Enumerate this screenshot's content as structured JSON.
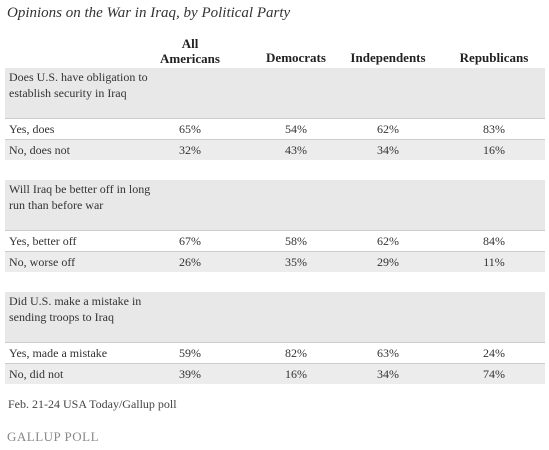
{
  "header": {
    "title": "Opinions on the War in Iraq, by Political Party"
  },
  "table": {
    "columns": [
      "All Americans",
      "Democrats",
      "Independents",
      "Republicans"
    ],
    "sections": [
      {
        "question": "Does U.S. have obligation to establish security in Iraq",
        "rows": [
          {
            "label": "Yes, does",
            "values": [
              "65%",
              "54%",
              "62%",
              "83%"
            ]
          },
          {
            "label": "No, does not",
            "values": [
              "32%",
              "43%",
              "34%",
              "16%"
            ]
          }
        ]
      },
      {
        "question": "Will Iraq be better off in long run than before war",
        "rows": [
          {
            "label": "Yes, better off",
            "values": [
              "67%",
              "58%",
              "62%",
              "84%"
            ]
          },
          {
            "label": "No, worse off",
            "values": [
              "26%",
              "35%",
              "29%",
              "11%"
            ]
          }
        ]
      },
      {
        "question": "Did U.S. make a mistake in sending troops to Iraq",
        "rows": [
          {
            "label": "Yes, made a mistake",
            "values": [
              "59%",
              "82%",
              "63%",
              "24%"
            ]
          },
          {
            "label": "No, did not",
            "values": [
              "39%",
              "16%",
              "34%",
              "74%"
            ]
          }
        ]
      }
    ]
  },
  "footnote": "Feb. 21-24 USA Today/Gallup poll",
  "logo": "GALLUP POLL"
}
